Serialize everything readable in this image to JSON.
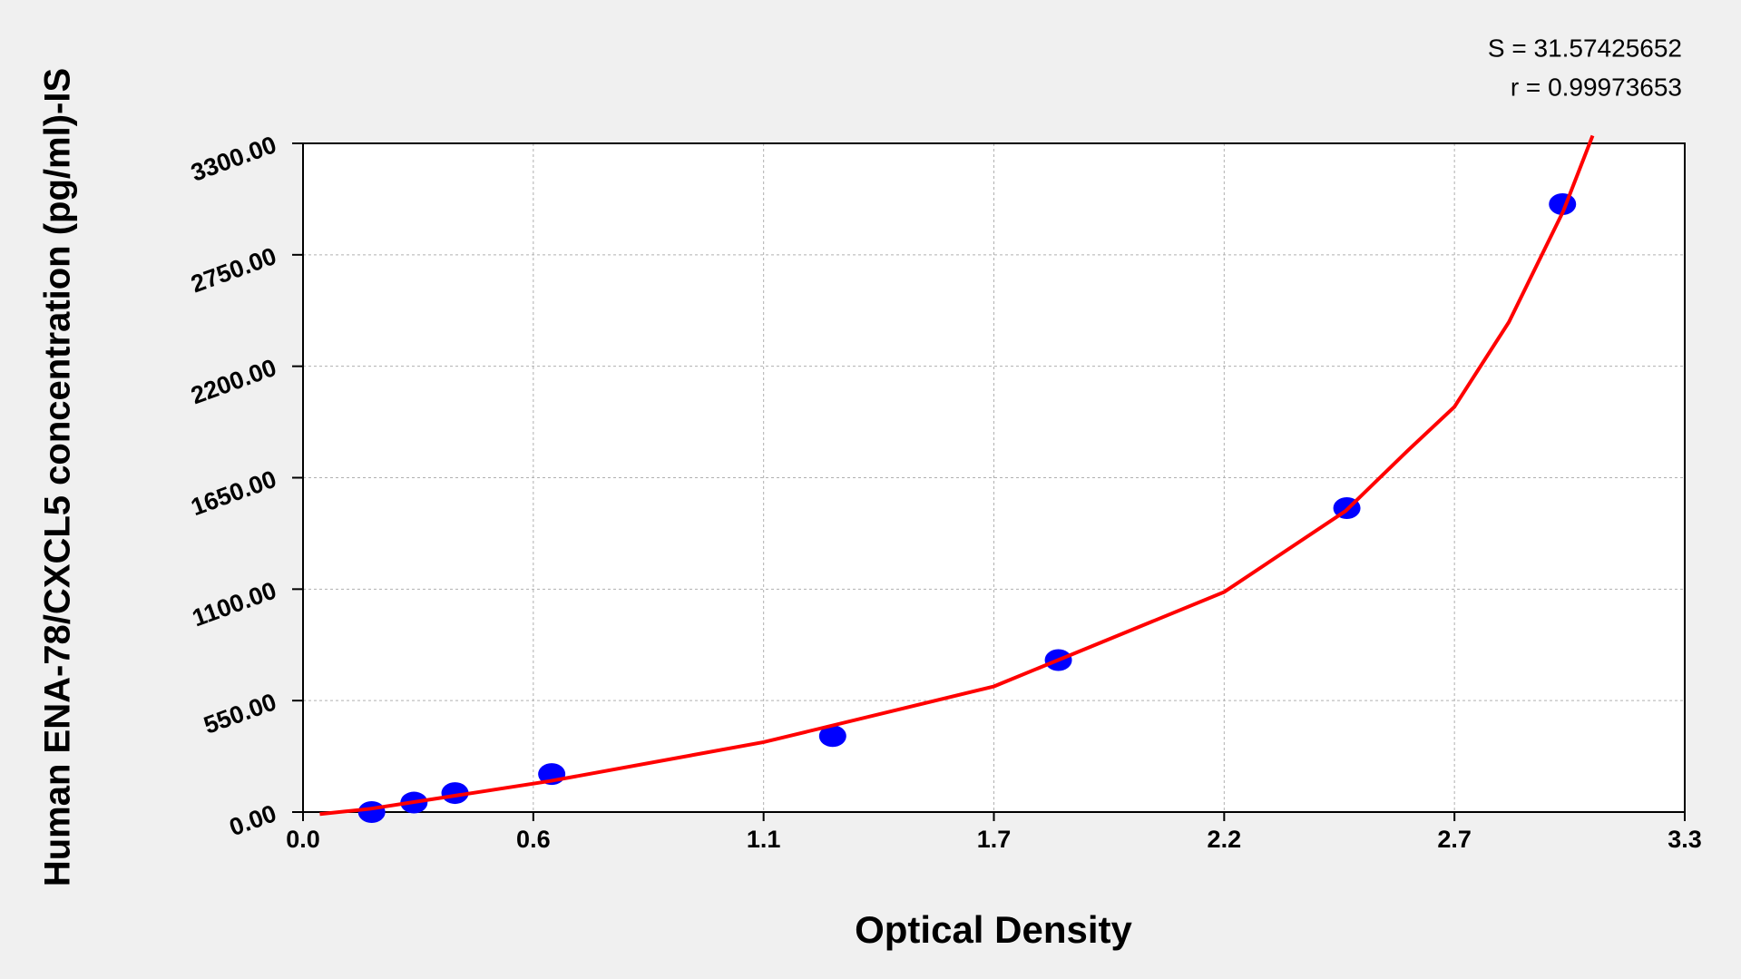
{
  "chart_data": {
    "type": "scatter",
    "annotations": [
      "S = 31.57425652",
      "r = 0.99973653"
    ],
    "x_label": "Optical Density",
    "y_label": "Human ENA-78/CXCL5 concentration (pg/ml)-IS",
    "xlim": [
      0,
      3.3
    ],
    "xticks": [
      {
        "value": 0,
        "label": "0.0"
      },
      {
        "value": 0.55,
        "label": "0.6"
      },
      1.1,
      {
        "value": 1.65,
        "label": "1.7"
      },
      2.2,
      {
        "value": 2.75,
        "label": "2.7"
      },
      3.3
    ],
    "ylim": [
      0,
      3300
    ],
    "yticks": [
      {
        "value": 0,
        "label": "0.00"
      },
      {
        "value": 550,
        "label": "550.00"
      },
      {
        "value": 1100,
        "label": "1100.00"
      },
      {
        "value": 1650,
        "label": "1650.00"
      },
      {
        "value": 2200,
        "label": "2200.00"
      },
      {
        "value": 2750,
        "label": "2750.00"
      },
      {
        "value": 3300,
        "label": "3300.00"
      }
    ],
    "grid": true,
    "series": [
      {
        "type": "scatter",
        "color": "#0000ff",
        "x": [
          0.164,
          0.265,
          0.363,
          0.594,
          1.265,
          1.804,
          2.493,
          3.008
        ],
        "values": [
          0,
          46.88,
          93.75,
          187.5,
          375,
          750,
          1500,
          3000
        ]
      },
      {
        "type": "line",
        "color": "#ff0000",
        "x": [
          0.04,
          0.16,
          0.59,
          1.1,
          1.65,
          2.2,
          2.49,
          2.64,
          2.75,
          2.88,
          3.01,
          3.08
        ],
        "values": [
          -10,
          16,
          153,
          345,
          620,
          1086,
          1486,
          1787,
          2000,
          2418,
          2966,
          3338
        ]
      }
    ]
  }
}
